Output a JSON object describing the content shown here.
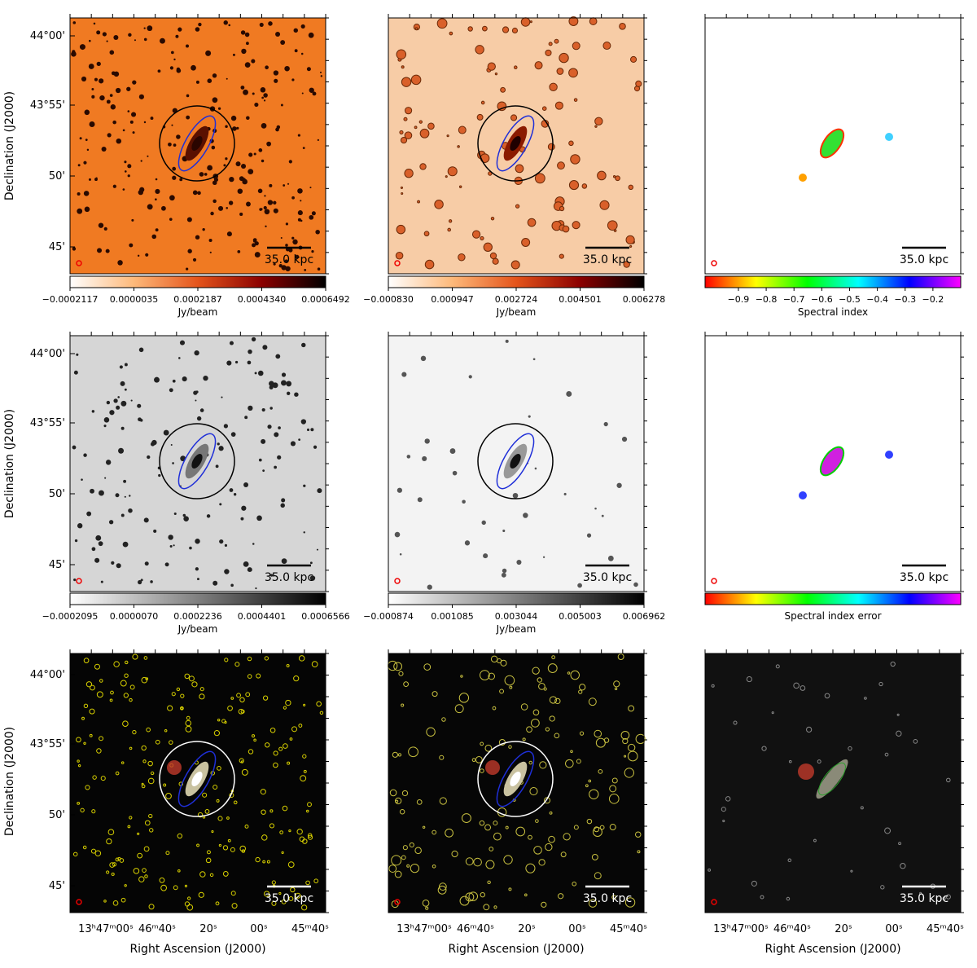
{
  "y_axis": {
    "label": "Declination (J2000)",
    "ticks": [
      "44°00'",
      "43°55'",
      "50'",
      "45'"
    ]
  },
  "x_axis": {
    "label": "Right Ascension (J2000)",
    "ticks": [
      "13ʰ47ᵐ00ˢ",
      "46ᵐ40ˢ",
      "20ˢ",
      "00ˢ",
      "45ᵐ40ˢ"
    ]
  },
  "panels": [
    {
      "scale_bar": "35.0 kpc",
      "colorbar": {
        "label": "Jy/beam",
        "colormap": [
          "#ffffff",
          "#fdb97a",
          "#e4541b",
          "#8b0000",
          "#000000"
        ],
        "lim": [
          -0.0002117,
          0.0006492
        ],
        "ticks": [
          {
            "value": -0.0002117,
            "label": "−0.0002117"
          },
          {
            "value": 3.5e-06,
            "label": "0.0000035"
          },
          {
            "value": 0.0002187,
            "label": "0.0002187"
          },
          {
            "value": 0.000434,
            "label": "0.0004340"
          },
          {
            "value": 0.0006492,
            "label": "0.0006492"
          }
        ]
      }
    },
    {
      "scale_bar": "35.0 kpc",
      "colorbar": {
        "label": "Jy/beam",
        "colormap": [
          "#ffffff",
          "#fdb97a",
          "#e4541b",
          "#8b0000",
          "#000000"
        ],
        "lim": [
          -0.00083,
          0.006278
        ],
        "ticks": [
          {
            "value": -0.00083,
            "label": "−0.000830"
          },
          {
            "value": 0.000947,
            "label": "0.000947"
          },
          {
            "value": 0.002724,
            "label": "0.002724"
          },
          {
            "value": 0.004501,
            "label": "0.004501"
          },
          {
            "value": 0.006278,
            "label": "0.006278"
          }
        ]
      }
    },
    {
      "scale_bar": "35.0 kpc",
      "colorbar": {
        "label": "Spectral index",
        "colormap": [
          "#ff0000",
          "#ffff00",
          "#00ff00",
          "#00ffff",
          "#0000ff",
          "#ff00ff"
        ],
        "lim": [
          -1.02,
          -0.1
        ],
        "ticks": [
          {
            "value": -0.9,
            "label": "−0.9"
          },
          {
            "value": -0.8,
            "label": "−0.8"
          },
          {
            "value": -0.7,
            "label": "−0.7"
          },
          {
            "value": -0.6,
            "label": "−0.6"
          },
          {
            "value": -0.5,
            "label": "−0.5"
          },
          {
            "value": -0.4,
            "label": "−0.4"
          },
          {
            "value": -0.3,
            "label": "−0.3"
          },
          {
            "value": -0.2,
            "label": "−0.2"
          }
        ]
      }
    },
    {
      "scale_bar": "35.0 kpc",
      "colorbar": {
        "label": "Jy/beam",
        "colormap": [
          "#ffffff",
          "#000000"
        ],
        "lim": [
          -0.0002095,
          0.0006566
        ],
        "ticks": [
          {
            "value": -0.0002095,
            "label": "−0.0002095"
          },
          {
            "value": 7e-06,
            "label": "0.0000070"
          },
          {
            "value": 0.0002236,
            "label": "0.0002236"
          },
          {
            "value": 0.0004401,
            "label": "0.0004401"
          },
          {
            "value": 0.0006566,
            "label": "0.0006566"
          }
        ]
      }
    },
    {
      "scale_bar": "35.0 kpc",
      "colorbar": {
        "label": "Jy/beam",
        "colormap": [
          "#ffffff",
          "#000000"
        ],
        "lim": [
          -0.000874,
          0.006962
        ],
        "ticks": [
          {
            "value": -0.000874,
            "label": "−0.000874"
          },
          {
            "value": 0.001085,
            "label": "0.001085"
          },
          {
            "value": 0.003044,
            "label": "0.003044"
          },
          {
            "value": 0.005003,
            "label": "0.005003"
          },
          {
            "value": 0.006962,
            "label": "0.006962"
          }
        ]
      }
    },
    {
      "scale_bar": "35.0 kpc",
      "colorbar": {
        "label": "Spectral index error",
        "colormap": [
          "#ff0000",
          "#ffff00",
          "#00ff00",
          "#00ffff",
          "#0000ff",
          "#ff00ff"
        ]
      }
    },
    {
      "scale_bar": "35.0 kpc"
    },
    {
      "scale_bar": "35.0 kpc"
    },
    {
      "scale_bar": "35.0 kpc"
    }
  ]
}
